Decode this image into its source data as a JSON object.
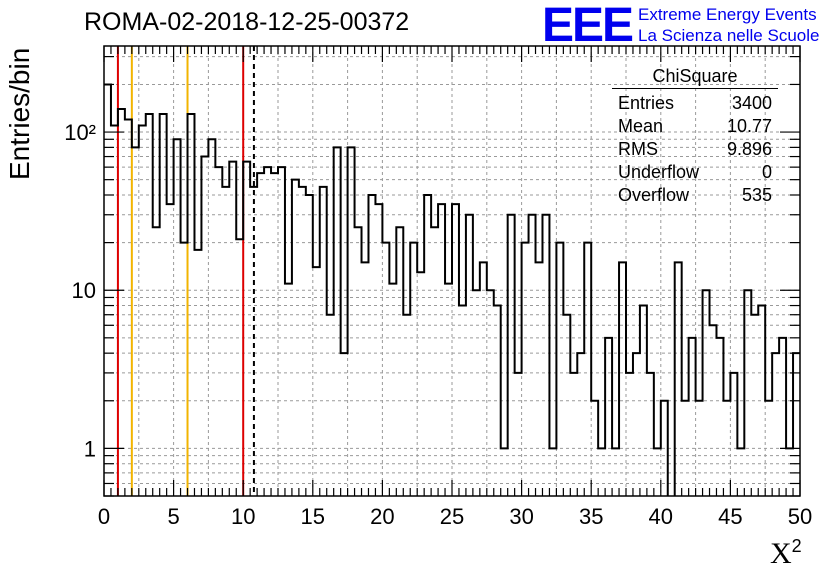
{
  "title": "ROMA-02-2018-12-25-00372",
  "logo": {
    "mark": "EEE",
    "line1": "Extreme Energy Events",
    "line2": "La Scienza nelle Scuole"
  },
  "stats": {
    "name": "ChiSquare",
    "rows": [
      {
        "label": "Entries",
        "value": "3400"
      },
      {
        "label": "Mean",
        "value": "10.77"
      },
      {
        "label": "RMS",
        "value": "9.896"
      },
      {
        "label": "Underflow",
        "value": "0"
      },
      {
        "label": "Overflow",
        "value": "535"
      }
    ]
  },
  "chart_data": {
    "type": "histogram",
    "title": "ROMA-02-2018-12-25-00372",
    "xlabel": "X",
    "xlabel_superscript": "2",
    "ylabel": "Entries/bin",
    "xlim": [
      0,
      50
    ],
    "ylim": [
      0.5,
      350
    ],
    "log_y": true,
    "grid": true,
    "bin_width": 0.5,
    "x_ticks": [
      0,
      5,
      10,
      15,
      20,
      25,
      30,
      35,
      40,
      45,
      50
    ],
    "y_ticks": [
      1,
      10,
      100
    ],
    "y_tick_labels": [
      "1",
      "10",
      "10²"
    ],
    "bin_contents": [
      200,
      110,
      140,
      120,
      80,
      110,
      130,
      25,
      130,
      35,
      90,
      20,
      130,
      18,
      70,
      90,
      60,
      45,
      65,
      21,
      65,
      45,
      55,
      60,
      55,
      60,
      11,
      50,
      45,
      40,
      14,
      45,
      7,
      80,
      4,
      80,
      25,
      15,
      40,
      35,
      20,
      11,
      25,
      7,
      20,
      13,
      40,
      25,
      35,
      11,
      35,
      8,
      30,
      10,
      15,
      10,
      8,
      1,
      30,
      3,
      20,
      30,
      15,
      30,
      1,
      20,
      7,
      3,
      4,
      20,
      2,
      1,
      5,
      1,
      15,
      3,
      4,
      8,
      3,
      1,
      2,
      0,
      15,
      2,
      5,
      2,
      10,
      6,
      5,
      2,
      3,
      1,
      10,
      7,
      8,
      2,
      4,
      5,
      1,
      4
    ],
    "vertical_lines": [
      {
        "x": 1,
        "color": "#dd0000",
        "style": "solid"
      },
      {
        "x": 2,
        "color": "#f2b400",
        "style": "solid"
      },
      {
        "x": 6,
        "color": "#f2b400",
        "style": "solid"
      },
      {
        "x": 10,
        "color": "#dd0000",
        "style": "solid"
      },
      {
        "x": 10.77,
        "color": "#000000",
        "style": "dashed"
      }
    ]
  }
}
